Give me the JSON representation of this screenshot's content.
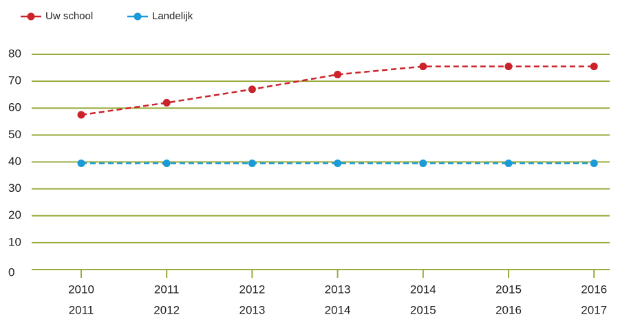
{
  "chart_data": {
    "type": "line",
    "categories": [
      [
        "2010",
        "2011"
      ],
      [
        "2011",
        "2012"
      ],
      [
        "2012",
        "2013"
      ],
      [
        "2013",
        "2014"
      ],
      [
        "2014",
        "2015"
      ],
      [
        "2015",
        "2016"
      ],
      [
        "2016",
        "2017"
      ]
    ],
    "series": [
      {
        "name": "Uw school",
        "color": "#cc2229",
        "values": [
          57.5,
          62,
          67,
          72.5,
          75.5,
          75.5,
          75.5
        ]
      },
      {
        "name": "Landelijk",
        "color": "#1a9ad6",
        "values": [
          39.5,
          39.5,
          39.5,
          39.5,
          39.5,
          39.5,
          39.5
        ]
      }
    ],
    "ylim": [
      0,
      80
    ],
    "yticks": [
      0,
      10,
      20,
      30,
      40,
      50,
      60,
      70,
      80
    ],
    "grid": true,
    "grid_color": "#9aab3c",
    "dashed": true
  }
}
